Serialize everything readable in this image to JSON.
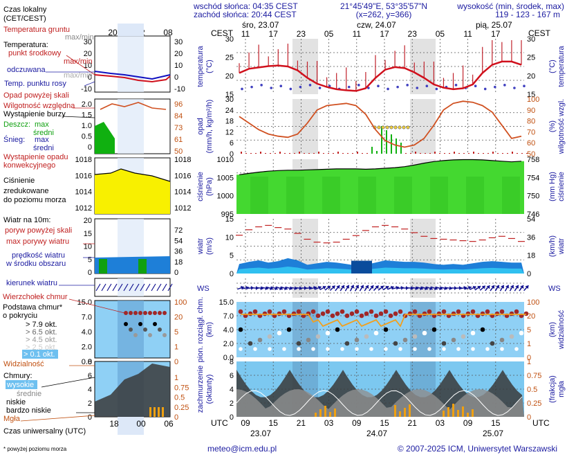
{
  "header": {
    "sunrise": "wschód słońca: 04:35 CEST",
    "sunset": "zachód słońca: 20:44 CEST",
    "coords": "21°45'49\"E, 53°35'57\"N",
    "grid": "(x=262, y=366)",
    "elev_title": "wysokość (min, środek, max)",
    "elev_values": "119 - 123 - 167 m"
  },
  "footer": {
    "email": "meteo@icm.edu.pl",
    "copyright": "© 2007-2025 ICM, Uniwersytet Warszawski",
    "note": "* powyżej poziomu morza"
  },
  "legend": {
    "local_time": "Czas lokalny",
    "local_time2": "(CET/CEST)",
    "utc_time": "Czas uniwersalny (UTC)",
    "soil_temp": "Temperatura gruntu",
    "soil_temp_sub": "max/min",
    "temperature": "Temperatura:",
    "mid_point": "punkt środkowy",
    "max_min": "max/min",
    "perceived": "odczuwana",
    "dew_point": "Temp. punktu rosy",
    "precip_above": "Opad powyżej skali",
    "humidity": "Wilgotność względna",
    "storm": "Wystąpienie burzy",
    "rain": "Deszcz:",
    "rain_max": "max",
    "rain_mean": "średni",
    "snow": "Śnieg:",
    "snow_max": "max",
    "snow_mean": "średni",
    "conv1": "Wystąpienie opadu",
    "conv2": "konwekcyjnego",
    "pressure1": "Ciśnienie",
    "pressure2": "zredukowane",
    "pressure3": "do poziomu morza",
    "wind_title": "Wiatr na 10m:",
    "gust_above": "poryw powyżej skali",
    "max_gust": "max porywy wiatru",
    "mean_wind1": "prędkość wiatru",
    "mean_wind2": "w środku obszaru",
    "wind_dir": "kierunek wiatru",
    "cloud_tip": "Wierzchołek chmur",
    "cloud_base1": "Podstawa chmur*",
    "cloud_base2": "o pokryciu",
    "okt79": "> 7.9 okt.",
    "okt65": "> 6.5 okt.",
    "okt45": "> 4.5 okt.",
    "okt25": "> 2.5 okt.",
    "okt01": "> 0.1 okt.",
    "visibility": "Widzialność",
    "clouds": "Chmury:",
    "high": "wysokie",
    "mid": "średnie",
    "low": "niskie",
    "very_low": "bardzo niskie",
    "fog": "Mgła"
  },
  "top_axis": {
    "label": "CEST",
    "days": [
      "śro, 23.07",
      "czw, 24.07",
      "pią, 25.07"
    ],
    "hours": [
      "11",
      "17",
      "23",
      "05",
      "11",
      "17",
      "23",
      "05",
      "11",
      "17"
    ],
    "mini_hours": [
      "20",
      "02",
      "08"
    ]
  },
  "bottom_axis": {
    "label": "UTC",
    "hours": [
      "09",
      "15",
      "21",
      "03",
      "09",
      "15",
      "21",
      "03",
      "09",
      "15"
    ],
    "days": [
      "23.07",
      "24.07",
      "25.07"
    ],
    "mini_hours": [
      "18",
      "00",
      "06"
    ]
  },
  "panels": {
    "temp": {
      "yl": "temperatura",
      "yl2": "(°C)",
      "yr": "(°C)",
      "yr2": "temperatura",
      "ticks": [
        "30",
        "25",
        "20",
        "15"
      ],
      "mini": [
        "30",
        "20",
        "10",
        "0",
        "-10"
      ]
    },
    "precip": {
      "yl": "opad",
      "yl2": "(mm/h, kg/m²/h)",
      "yr": "(%)",
      "yr2": "wilgotność wzgl.",
      "lt": [
        "30",
        "24",
        "18",
        "12",
        "6",
        "0"
      ],
      "rt": [
        "100",
        "90",
        "80",
        "70",
        "60",
        "50"
      ],
      "mini_l": [
        "2.0",
        "1.5",
        "1.0",
        "0.5",
        "0"
      ],
      "mini_r": [
        "96",
        "84",
        "73",
        "61",
        "50"
      ]
    },
    "pressure": {
      "yl": "ciśnienie",
      "yl2": "(hPa)",
      "yr": "(mm Hg)",
      "yr2": "ciśnienie",
      "lt": [
        "1010",
        "1005",
        "1000",
        "995"
      ],
      "rt": [
        "758",
        "754",
        "750",
        "746"
      ],
      "mini_l": [
        "1018",
        "1016",
        "1014",
        "1012"
      ],
      "mini_r": [
        "1018",
        "1016",
        "1014",
        "1012"
      ]
    },
    "wind": {
      "yl": "wiatr",
      "yl2": "(m/s)",
      "yr": "(km/h)",
      "yr2": "wiatr",
      "lt": [
        "15",
        "10",
        "5",
        "0"
      ],
      "rt": [
        "54",
        "36",
        "18",
        "0"
      ],
      "mini_l": [
        "20",
        "15",
        "10",
        "5",
        "0"
      ],
      "mini_r": [
        "72",
        "54",
        "36",
        "18",
        "0"
      ]
    },
    "cloud": {
      "yl": "pion. rozciągł. chm.",
      "yl2": "(km)",
      "yr": "(km)",
      "yr2": "widzialność",
      "lt": [
        "15.0",
        "7.0",
        "4.0",
        "2.0",
        "0.0"
      ],
      "rt": [
        "100",
        "20",
        "5",
        "1",
        "0"
      ]
    },
    "cover": {
      "yl": "zachmurzenie",
      "yl2": "(oktanty)",
      "yr": "(frakcja)",
      "yr2": "mgła",
      "lt": [
        "8",
        "6",
        "4",
        "2",
        "0"
      ],
      "rt": [
        "1",
        "0.75",
        "0.5",
        "0.25",
        "0"
      ]
    }
  },
  "chart_data": [
    {
      "type": "line",
      "title": "temperatura",
      "ylabel": "temperatura (°C)",
      "ylim": [
        13,
        30
      ],
      "series": [
        {
          "name": "punkt środkowy",
          "values": [
            19.5,
            20.8,
            21.2,
            21.6,
            21.8,
            21.5,
            20.3,
            18.0,
            16.2,
            15.2,
            14.5,
            14.2,
            14.0,
            14.8,
            18.0,
            20.5,
            21.3,
            21.0,
            19.7,
            18.0,
            16.0,
            15.0,
            14.5,
            14.8,
            16.0,
            19.5,
            22.0,
            23.0,
            23.0,
            22.0
          ]
        }
      ]
    },
    {
      "type": "line",
      "title": "wilgotność",
      "ylabel": "wilgotność wzgl. (%)",
      "ylim": [
        50,
        100
      ],
      "series": [
        {
          "name": "wilgotność",
          "values": [
            84,
            78,
            72,
            68,
            66,
            65,
            68,
            78,
            90,
            94,
            95,
            96,
            94,
            86,
            72,
            62,
            58,
            56,
            58,
            64,
            76,
            90,
            96,
            98,
            97,
            94,
            88,
            76,
            64,
            66
          ]
        }
      ]
    },
    {
      "type": "area",
      "title": "ciśnienie",
      "ylabel": "ciśnienie (hPa)",
      "ylim": [
        995,
        1012
      ],
      "series": [
        {
          "name": "ciśnienie",
          "values": [
            1007.2,
            1007.6,
            1008.0,
            1008.3,
            1008.5,
            1008.6,
            1008.6,
            1008.7,
            1008.8,
            1008.9,
            1009.0,
            1009.0,
            1009.0,
            1008.9,
            1009.0,
            1009.2,
            1009.4,
            1009.7,
            1010.2,
            1010.8,
            1011.3,
            1011.6,
            1011.8,
            1011.9,
            1011.9,
            1011.8,
            1011.6,
            1011.4,
            1011.2,
            1011.4
          ]
        }
      ]
    },
    {
      "type": "area",
      "title": "wiatr",
      "ylabel": "wiatr (m/s)",
      "ylim": [
        0,
        15
      ],
      "series": [
        {
          "name": "prędkość wiatru",
          "values": [
            2.6,
            3.2,
            3.6,
            3.0,
            3.4,
            4.2,
            3.6,
            2.4,
            2.8,
            3.2,
            3.0,
            2.6,
            2.2,
            2.4,
            3.0,
            3.6,
            3.4,
            3.2,
            3.2,
            3.0,
            2.6,
            2.4,
            2.6,
            2.4,
            2.8,
            3.2,
            3.4,
            3.2,
            3.0,
            3.0
          ]
        },
        {
          "name": "max porywy wiatru",
          "values": [
            10.5,
            12.0,
            12.8,
            13.2,
            12.6,
            12.2,
            11.0,
            9.4,
            8.6,
            8.4,
            8.6,
            9.4,
            10.4,
            11.8,
            12.8,
            13.2,
            12.8,
            12.2,
            11.2,
            10.2,
            9.6,
            9.4,
            9.2,
            9.0,
            8.8,
            9.2,
            9.8,
            10.2,
            9.6,
            8.8
          ]
        }
      ]
    }
  ]
}
